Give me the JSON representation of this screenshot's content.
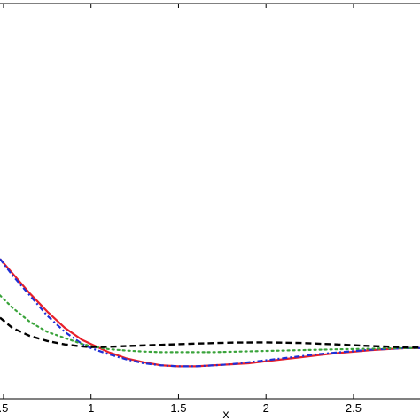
{
  "chart_data": {
    "type": "line",
    "title": "",
    "xlabel": "x",
    "ylabel": "",
    "xlim": [
      0.48,
      2.88
    ],
    "ylim": [
      -0.25,
      1.7
    ],
    "grid": false,
    "legend": "none",
    "xticks": [
      {
        "value": 0.5,
        "label": ".5"
      },
      {
        "value": 1,
        "label": "1"
      },
      {
        "value": 1.5,
        "label": "1.5"
      },
      {
        "value": 2,
        "label": "2"
      },
      {
        "value": 2.5,
        "label": "2.5"
      }
    ],
    "series": [
      {
        "color": "#e8202a",
        "style": "solid",
        "x": [
          0.48,
          0.55,
          0.65,
          0.75,
          0.85,
          0.95,
          1.0,
          1.1,
          1.2,
          1.3,
          1.4,
          1.5,
          1.6,
          1.7,
          1.8,
          1.9,
          2.0,
          2.1,
          2.2,
          2.3,
          2.4,
          2.5,
          2.6,
          2.7,
          2.8,
          2.88
        ],
        "y": [
          0.44,
          0.37,
          0.27,
          0.18,
          0.1,
          0.04,
          0.02,
          -0.02,
          -0.05,
          -0.07,
          -0.085,
          -0.09,
          -0.09,
          -0.085,
          -0.08,
          -0.075,
          -0.065,
          -0.055,
          -0.045,
          -0.035,
          -0.025,
          -0.018,
          -0.01,
          -0.005,
          0.0,
          0.0
        ]
      },
      {
        "color": "#1f2fd6",
        "style": "dashdot",
        "x": [
          0.48,
          0.55,
          0.65,
          0.75,
          0.85,
          0.95,
          1.0,
          1.1,
          1.2,
          1.3,
          1.4,
          1.5,
          1.6,
          1.7,
          1.8,
          1.9,
          2.0,
          2.1,
          2.2,
          2.3,
          2.4,
          2.5,
          2.6,
          2.7,
          2.8,
          2.88
        ],
        "y": [
          0.44,
          0.36,
          0.26,
          0.16,
          0.08,
          0.02,
          0.0,
          -0.03,
          -0.055,
          -0.075,
          -0.085,
          -0.09,
          -0.09,
          -0.085,
          -0.08,
          -0.07,
          -0.06,
          -0.05,
          -0.04,
          -0.03,
          -0.022,
          -0.015,
          -0.008,
          -0.004,
          0.0,
          0.0
        ]
      },
      {
        "color": "#39a33a",
        "style": "dotted",
        "x": [
          0.48,
          0.55,
          0.65,
          0.75,
          0.85,
          0.95,
          1.0,
          1.1,
          1.2,
          1.3,
          1.4,
          1.5,
          1.6,
          1.7,
          1.8,
          1.9,
          2.0,
          2.2,
          2.4,
          2.6,
          2.8,
          2.88
        ],
        "y": [
          0.26,
          0.2,
          0.13,
          0.08,
          0.05,
          0.02,
          0.01,
          -0.005,
          -0.012,
          -0.017,
          -0.02,
          -0.02,
          -0.02,
          -0.02,
          -0.018,
          -0.016,
          -0.014,
          -0.01,
          -0.006,
          -0.003,
          0.0,
          0.0
        ]
      },
      {
        "color": "#000000",
        "style": "dashed",
        "x": [
          0.48,
          0.55,
          0.65,
          0.75,
          0.85,
          0.95,
          1.0,
          1.1,
          1.2,
          1.4,
          1.6,
          1.8,
          2.0,
          2.2,
          2.4,
          2.6,
          2.8,
          2.88
        ],
        "y": [
          0.15,
          0.1,
          0.06,
          0.035,
          0.018,
          0.008,
          0.005,
          0.006,
          0.01,
          0.016,
          0.022,
          0.027,
          0.028,
          0.025,
          0.018,
          0.01,
          0.004,
          0.003
        ]
      }
    ]
  }
}
